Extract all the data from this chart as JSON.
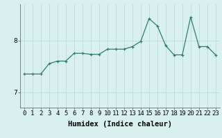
{
  "x": [
    0,
    1,
    2,
    3,
    4,
    5,
    6,
    7,
    8,
    9,
    10,
    11,
    12,
    13,
    14,
    15,
    16,
    17,
    18,
    19,
    20,
    21,
    22,
    23
  ],
  "y": [
    7.35,
    7.35,
    7.35,
    7.55,
    7.6,
    7.6,
    7.75,
    7.75,
    7.73,
    7.73,
    7.83,
    7.83,
    7.83,
    7.88,
    7.98,
    8.42,
    8.28,
    7.9,
    7.72,
    7.72,
    8.45,
    7.88,
    7.88,
    7.72
  ],
  "line_color": "#2d7d6e",
  "marker": "+",
  "marker_size": 3,
  "bg_color": "#d8f0ee",
  "grid_color": "#b8d8d4",
  "axis_color": "#555555",
  "xlabel": "Humidex (Indice chaleur)",
  "yticks": [
    7,
    8
  ],
  "ylim": [
    6.7,
    8.7
  ],
  "xlim": [
    -0.5,
    23.5
  ],
  "xtick_labels": [
    "0",
    "1",
    "2",
    "3",
    "4",
    "5",
    "6",
    "7",
    "8",
    "9",
    "10",
    "11",
    "12",
    "13",
    "14",
    "15",
    "16",
    "17",
    "18",
    "19",
    "20",
    "21",
    "22",
    "23"
  ],
  "xlabel_fontsize": 7.5,
  "tick_fontsize": 6.5,
  "line_width": 0.9
}
